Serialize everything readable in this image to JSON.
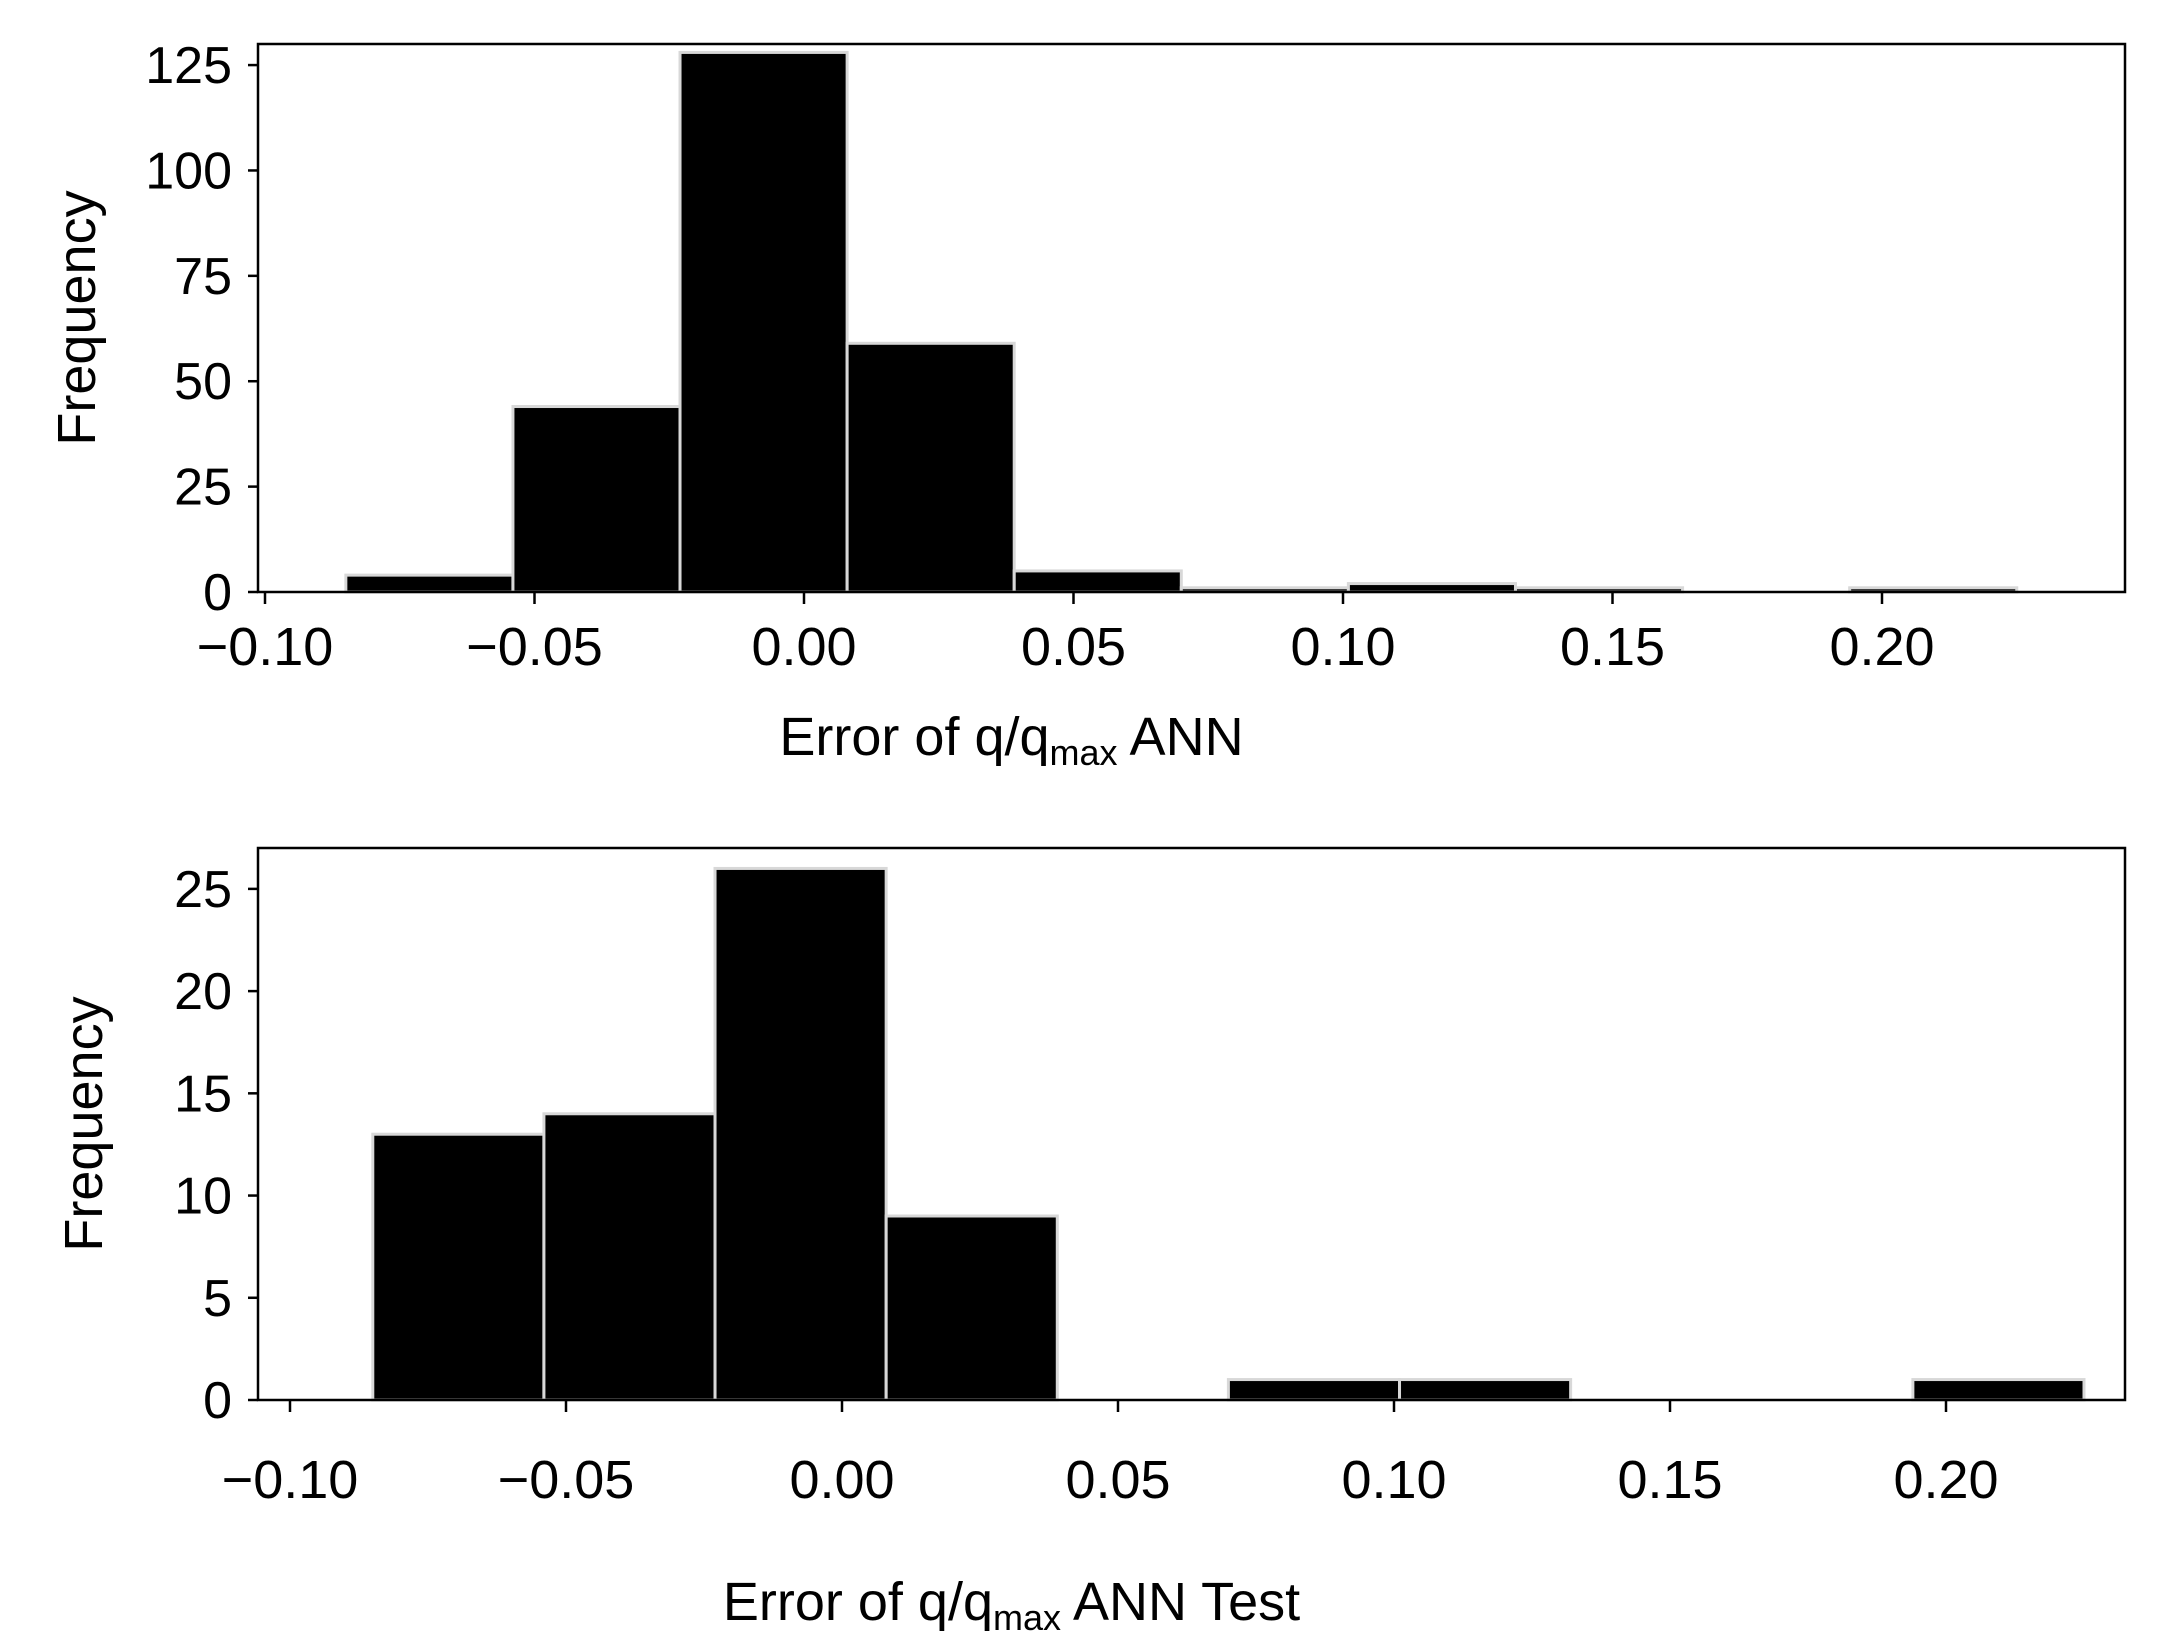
{
  "chart_data": [
    {
      "type": "bar",
      "xlabel": {
        "prefix": "Error of q/q",
        "subscript": "max",
        "suffix": " ANN"
      },
      "ylabel": "Frequency",
      "xlim": [
        -0.1,
        0.245
      ],
      "ylim": [
        0,
        130
      ],
      "x_ticks": [
        "−0.10",
        "−0.05",
        "0.00",
        "0.05",
        "0.10",
        "0.15",
        "0.20"
      ],
      "x_tick_values": [
        -0.1,
        -0.05,
        0.0,
        0.05,
        0.1,
        0.15,
        0.2
      ],
      "y_ticks": [
        "0",
        "25",
        "50",
        "75",
        "100",
        "125"
      ],
      "y_tick_values": [
        0,
        25,
        50,
        75,
        100,
        125
      ],
      "bin_width": 0.031,
      "bins": [
        {
          "x0": -0.085,
          "value": 4
        },
        {
          "x0": -0.054,
          "value": 44
        },
        {
          "x0": -0.023,
          "value": 128
        },
        {
          "x0": 0.008,
          "value": 59
        },
        {
          "x0": 0.039,
          "value": 5
        },
        {
          "x0": 0.07,
          "value": 1
        },
        {
          "x0": 0.101,
          "value": 2
        },
        {
          "x0": 0.132,
          "value": 1
        },
        {
          "x0": 0.163,
          "value": 0
        },
        {
          "x0": 0.194,
          "value": 1
        }
      ],
      "colors": {
        "bar": "#000000",
        "bar_edge": "#d8d8d8"
      }
    },
    {
      "type": "bar",
      "xlabel": {
        "prefix": "Error of q/q",
        "subscript": "max",
        "suffix": " ANN Test"
      },
      "ylabel": "Frequency",
      "xlim": [
        -0.1,
        0.245
      ],
      "ylim": [
        0,
        27
      ],
      "x_ticks": [
        "−0.10",
        "−0.05",
        "0.00",
        "0.05",
        "0.10",
        "0.15",
        "0.20"
      ],
      "x_tick_values": [
        -0.1,
        -0.05,
        0.0,
        0.05,
        0.1,
        0.15,
        0.2
      ],
      "y_ticks": [
        "0",
        "5",
        "10",
        "15",
        "20",
        "25"
      ],
      "y_tick_values": [
        0,
        5,
        10,
        15,
        20,
        25
      ],
      "bin_width": 0.031,
      "bins": [
        {
          "x0": -0.085,
          "value": 13
        },
        {
          "x0": -0.054,
          "value": 14
        },
        {
          "x0": -0.023,
          "value": 26
        },
        {
          "x0": 0.008,
          "value": 9
        },
        {
          "x0": 0.039,
          "value": 0
        },
        {
          "x0": 0.07,
          "value": 1
        },
        {
          "x0": 0.101,
          "value": 1
        },
        {
          "x0": 0.132,
          "value": 0
        },
        {
          "x0": 0.163,
          "value": 0
        },
        {
          "x0": 0.194,
          "value": 1
        }
      ],
      "colors": {
        "bar": "#000000",
        "bar_edge": "#d8d8d8"
      }
    }
  ]
}
